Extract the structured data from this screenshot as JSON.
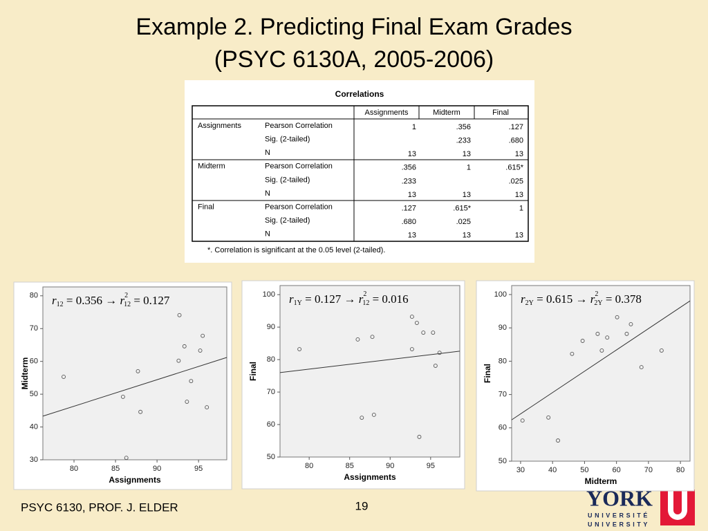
{
  "title": [
    "Example 2.  Predicting Final Exam Grades",
    "(PSYC 6130A, 2005-2006)"
  ],
  "table": {
    "title": "Correlations",
    "columns": [
      "Assignments",
      "Midterm",
      "Final"
    ],
    "rows": [
      {
        "variable": "Assignments",
        "stats": [
          {
            "label": "Pearson Correlation",
            "cells": [
              "1",
              ".356",
              ".127"
            ]
          },
          {
            "label": "Sig. (2-tailed)",
            "cells": [
              null,
              ".233",
              ".680"
            ]
          },
          {
            "label": "N",
            "cells": [
              "13",
              "13",
              "13"
            ]
          }
        ]
      },
      {
        "variable": "Midterm",
        "stats": [
          {
            "label": "Pearson Correlation",
            "cells": [
              ".356",
              "1",
              ".615*"
            ]
          },
          {
            "label": "Sig. (2-tailed)",
            "cells": [
              ".233",
              null,
              ".025"
            ]
          },
          {
            "label": "N",
            "cells": [
              "13",
              "13",
              "13"
            ]
          }
        ]
      },
      {
        "variable": "Final",
        "stats": [
          {
            "label": "Pearson Correlation",
            "cells": [
              ".127",
              ".615*",
              "1"
            ]
          },
          {
            "label": "Sig. (2-tailed)",
            "cells": [
              ".680",
              ".025",
              null
            ]
          },
          {
            "label": "N",
            "cells": [
              "13",
              "13",
              "13"
            ]
          }
        ]
      }
    ],
    "footnote": "*. Correlation is significant at the 0.05 level (2-tailed)."
  },
  "chart_data": [
    {
      "type": "scatter",
      "x_label": "Assignments",
      "y_label": "Midterm",
      "annotation": [
        "r",
        "12",
        " = 0.356 → ",
        "r",
        "2",
        "12",
        " = 0.127"
      ],
      "x": [
        78.75,
        85.9,
        86.3,
        87.7,
        88.0,
        92.7,
        92.6,
        93.3,
        93.6,
        94.1,
        95.2,
        95.5,
        96.0
      ],
      "y": [
        55.3,
        49.2,
        30.6,
        57,
        44.6,
        74.1,
        60.2,
        64.6,
        47.7,
        54,
        63.3,
        67.8,
        46.0
      ],
      "xlim": [
        76.25,
        98.4
      ],
      "ylim": [
        30,
        82.7
      ],
      "xticks": [
        80,
        85,
        90,
        95
      ],
      "yticks": [
        30,
        40,
        50,
        60,
        70,
        80
      ],
      "fit_line": {
        "x": [
          76.25,
          98.4
        ],
        "y": [
          43.3,
          61.2
        ]
      },
      "color": "#555555"
    },
    {
      "type": "scatter",
      "x_label": "Assignments",
      "y_label": "Final",
      "annotation": [
        "r",
        "1Y",
        " = 0.127 → ",
        "r",
        "2",
        "12",
        " = 0.016"
      ],
      "x": [
        78.8,
        86.0,
        86.5,
        87.8,
        88.0,
        92.7,
        92.7,
        93.3,
        93.6,
        94.1,
        95.3,
        95.6,
        96.1
      ],
      "y": [
        83.2,
        86.2,
        62.1,
        87.0,
        63.0,
        93.2,
        83.2,
        91.3,
        56.2,
        88.3,
        88.3,
        78.1,
        82.1
      ],
      "xlim": [
        76.4,
        98.6
      ],
      "ylim": [
        50,
        102.8
      ],
      "xticks": [
        80,
        85,
        90,
        95
      ],
      "yticks": [
        50,
        60,
        70,
        80,
        90,
        100
      ],
      "fit_line": {
        "x": [
          76.4,
          98.6
        ],
        "y": [
          76.0,
          82.6
        ]
      },
      "color": "#555555"
    },
    {
      "type": "scatter",
      "x_label": "Midterm",
      "y_label": "Final",
      "annotation": [
        "r",
        "2Y",
        " = 0.615 → ",
        "r",
        "2",
        "2Y",
        " = 0.378"
      ],
      "x": [
        30.6,
        38.7,
        41.7,
        46.1,
        49.4,
        54.1,
        55.4,
        57.1,
        60.2,
        63.2,
        64.5,
        67.8,
        74.1
      ],
      "y": [
        62.2,
        63.1,
        56.2,
        82.2,
        86.1,
        88.2,
        83.2,
        87.1,
        93.2,
        88.2,
        91.1,
        78.2,
        83.2
      ],
      "xlim": [
        27.2,
        83.0
      ],
      "ylim": [
        50,
        102.7
      ],
      "xticks": [
        30,
        40,
        50,
        60,
        70,
        80
      ],
      "yticks": [
        50,
        60,
        70,
        80,
        90,
        100
      ],
      "fit_line": {
        "x": [
          27.2,
          83.0
        ],
        "y": [
          62.4,
          98.1
        ]
      },
      "color": "#555555"
    }
  ],
  "footer": {
    "left": "PSYC 6130, PROF. J. ELDER",
    "page": "19",
    "logo": [
      "YORK",
      "UNIVERSITÉ",
      "UNIVERSITY"
    ]
  }
}
